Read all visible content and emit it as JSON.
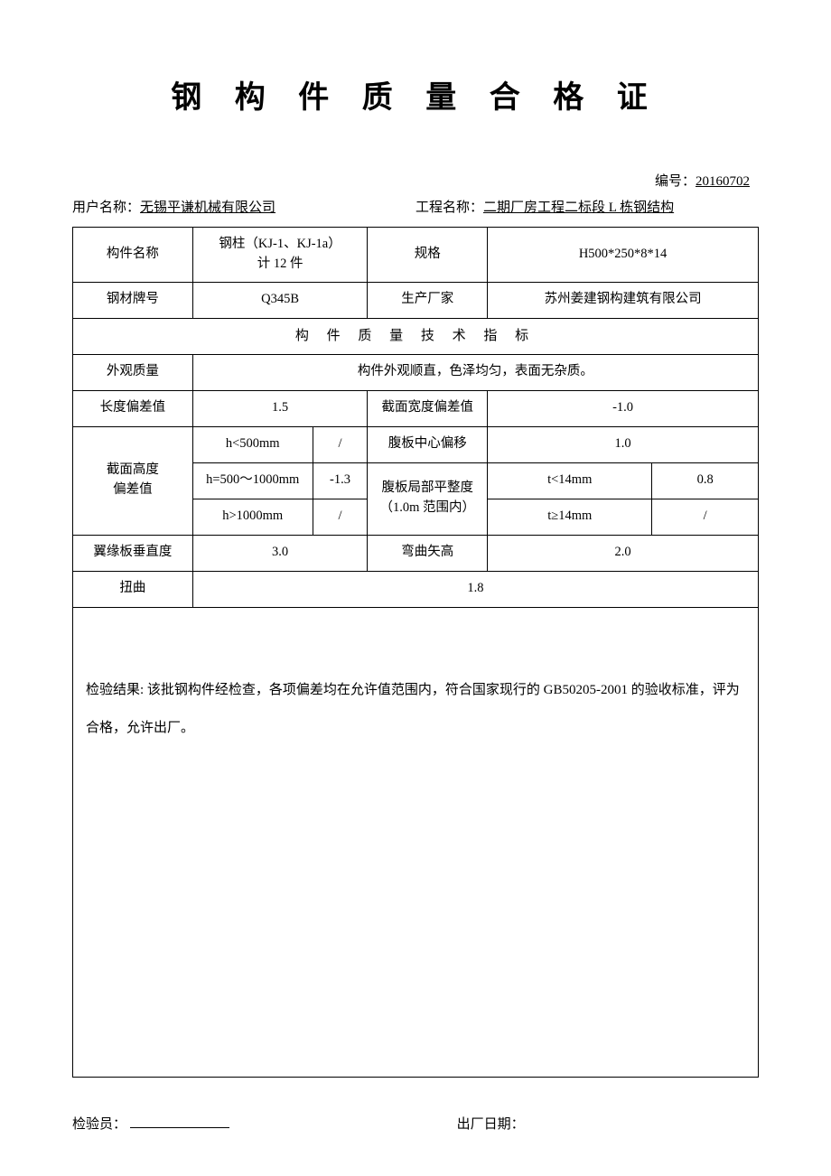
{
  "title": "钢 构 件 质 量 合 格 证",
  "serial": {
    "label": "编号：",
    "value": "20160702"
  },
  "header": {
    "user_label": "用户名称：",
    "user_value": "无锡平谦机械有限公司",
    "project_label": "工程名称：",
    "project_value": "二期厂房工程二标段 L 栋钢结构"
  },
  "row1": {
    "component_name_label": "构件名称",
    "component_name_value": "钢柱（KJ-1、KJ-1a）\n计 12 件",
    "spec_label": "规格",
    "spec_value": "H500*250*8*14"
  },
  "row2": {
    "grade_label": "钢材牌号",
    "grade_value": "Q345B",
    "manufacturer_label": "生产厂家",
    "manufacturer_value": "苏州姜建钢构建筑有限公司"
  },
  "section_header": "构 件 质 量 技 术 指 标",
  "appearance": {
    "label": "外观质量",
    "value": "构件外观顺直，色泽均匀，表面无杂质。"
  },
  "length_dev": {
    "label": "长度偏差值",
    "value": "1.5",
    "width_label": "截面宽度偏差值",
    "width_value": "-1.0"
  },
  "height_dev": {
    "label": "截面高度\n偏差值",
    "r1_cond": "h<500mm",
    "r1_val": "/",
    "r2_cond": "h=500～1000mm",
    "r2_val": "-1.3",
    "r3_cond": "h>1000mm",
    "r3_val": "/"
  },
  "web_offset": {
    "label": "腹板中心偏移",
    "value": "1.0"
  },
  "web_flat": {
    "label": "腹板局部平整度\n（1.0m 范围内）",
    "r1_cond": "t<14mm",
    "r1_val": "0.8",
    "r2_cond": "t≥14mm",
    "r2_val": "/"
  },
  "flange": {
    "label": "翼缘板垂直度",
    "value": "3.0",
    "bend_label": "弯曲矢高",
    "bend_value": "2.0"
  },
  "twist": {
    "label": "扭曲",
    "value": "1.8"
  },
  "result": {
    "text": "检验结果: 该批钢构件经检查，各项偏差均在允许值范围内，符合国家现行的 GB50205-2001 的验收标准，评为合格，允许出厂。"
  },
  "footer": {
    "inspector_label": "检验员：",
    "date_label": "出厂日期："
  }
}
